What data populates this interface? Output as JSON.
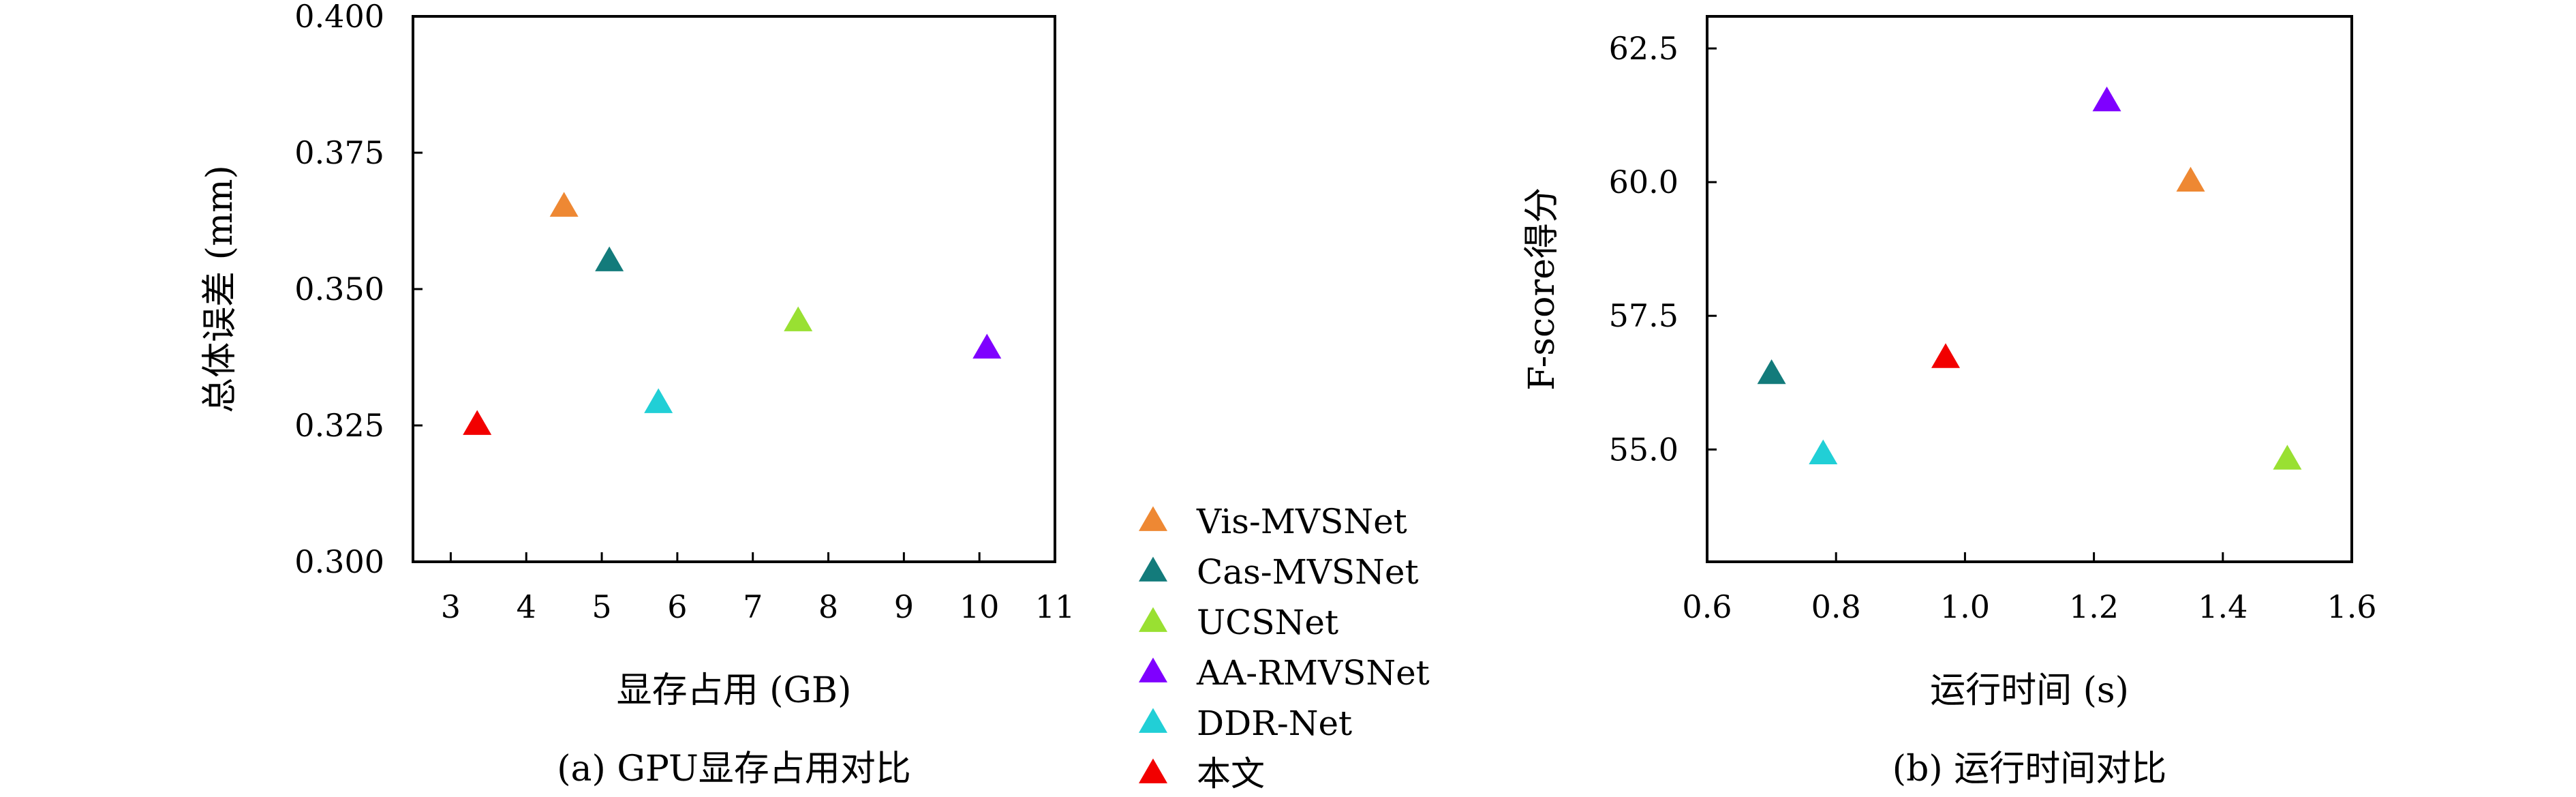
{
  "methods": [
    {
      "name": "Vis-MVSNet",
      "color": "#EE8833"
    },
    {
      "name": "Cas-MVSNet",
      "color": "#137B7B"
    },
    {
      "name": "UCSNet",
      "color": "#99E032"
    },
    {
      "name": "AA-RMVSNet",
      "color": "#7F00FF"
    },
    {
      "name": "DDR-Net",
      "color": "#21CFD6"
    },
    {
      "name": "本文",
      "color": "#F20000"
    }
  ],
  "chart_data": [
    {
      "type": "scatter",
      "marker": "triangle",
      "caption": "(a) GPU显存占用对比",
      "xlabel": "显存占用 (GB)",
      "ylabel": "总体误差 (mm)",
      "xlim": [
        2.5,
        11
      ],
      "ylim": [
        0.3,
        0.4
      ],
      "xticks": [
        3,
        4,
        5,
        6,
        7,
        8,
        9,
        10,
        11
      ],
      "yticks": [
        0.3,
        0.325,
        0.35,
        0.375,
        0.4
      ],
      "xtick_labels": [
        "3",
        "4",
        "5",
        "6",
        "7",
        "8",
        "9",
        "10",
        "11"
      ],
      "ytick_labels": [
        "0.300",
        "0.325",
        "0.350",
        "0.375",
        "0.400"
      ],
      "grid": false,
      "points": [
        {
          "series": "Vis-MVSNet",
          "x": 4.5,
          "y": 0.365
        },
        {
          "series": "Cas-MVSNet",
          "x": 5.1,
          "y": 0.355
        },
        {
          "series": "UCSNet",
          "x": 7.6,
          "y": 0.344
        },
        {
          "series": "AA-RMVSNet",
          "x": 10.1,
          "y": 0.339
        },
        {
          "series": "DDR-Net",
          "x": 5.75,
          "y": 0.329
        },
        {
          "series": "本文",
          "x": 3.35,
          "y": 0.325
        }
      ]
    },
    {
      "type": "scatter",
      "marker": "triangle",
      "caption": "(b) 运行时间对比",
      "xlabel": "运行时间 (s)",
      "ylabel": "F-score得分",
      "xlim": [
        0.6,
        1.6
      ],
      "ylim": [
        52.9,
        63.1
      ],
      "xticks": [
        0.6,
        0.8,
        1.0,
        1.2,
        1.4,
        1.6
      ],
      "yticks": [
        55.0,
        57.5,
        60.0,
        62.5
      ],
      "xtick_labels": [
        "0.6",
        "0.8",
        "1.0",
        "1.2",
        "1.4",
        "1.6"
      ],
      "ytick_labels": [
        "55.0",
        "57.5",
        "60.0",
        "62.5"
      ],
      "grid": false,
      "points": [
        {
          "series": "Vis-MVSNet",
          "x": 1.35,
          "y": 60.0
        },
        {
          "series": "Cas-MVSNet",
          "x": 0.7,
          "y": 56.4
        },
        {
          "series": "UCSNet",
          "x": 1.5,
          "y": 54.8
        },
        {
          "series": "AA-RMVSNet",
          "x": 1.22,
          "y": 61.5
        },
        {
          "series": "DDR-Net",
          "x": 0.78,
          "y": 54.9
        },
        {
          "series": "本文",
          "x": 0.97,
          "y": 56.7
        }
      ]
    }
  ],
  "legend": {
    "placement": "center-bottom"
  }
}
